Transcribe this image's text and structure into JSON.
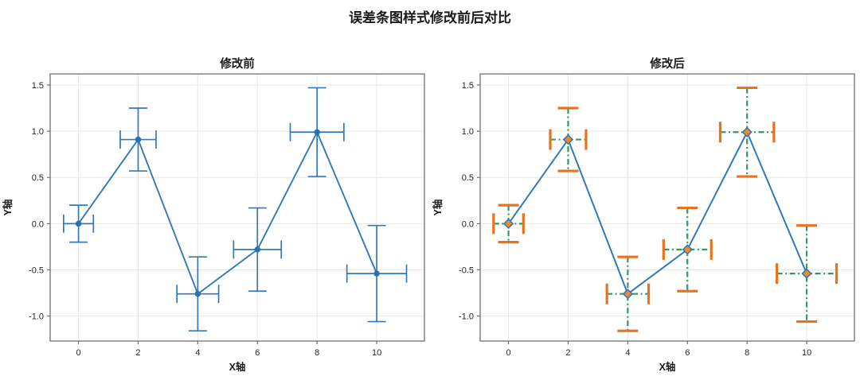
{
  "figure_title": "误差条图样式修改前后对比",
  "chart_data": [
    {
      "type": "line",
      "title": "修改前",
      "xlabel": "X轴",
      "ylabel": "Y轴",
      "x": [
        0,
        2,
        4,
        6,
        8,
        10
      ],
      "y": [
        0.0,
        0.91,
        -0.76,
        -0.28,
        0.99,
        -0.54
      ],
      "xerr": [
        0.5,
        0.6,
        0.7,
        0.8,
        0.9,
        1.0
      ],
      "yerr": [
        0.2,
        0.34,
        0.4,
        0.45,
        0.48,
        0.52
      ],
      "xticks": [
        0,
        2,
        4,
        6,
        8,
        10
      ],
      "xtick_labels": [
        "0",
        "2",
        "4",
        "6",
        "8",
        "10"
      ],
      "yticks": [
        1.5,
        1.0,
        0.5,
        0.0,
        -0.5,
        -1.0
      ],
      "ytick_labels": [
        "1.5",
        "1.0",
        "0.5",
        "0.0",
        "-0.5",
        "-1.0"
      ],
      "xlim": [
        -0.95,
        11.6
      ],
      "ylim": [
        -1.27,
        1.62
      ],
      "grid": true,
      "legend": "none",
      "style": {
        "line_color": "#3279b8",
        "line_width": 1.9,
        "marker": "circle",
        "marker_size": 7.5,
        "marker_fill": "#2a72ae",
        "marker_edge": "none",
        "marker_edge_width": 0,
        "err_color": "#3279b8",
        "err_width": 1.7,
        "err_dash": "",
        "cap_color": "#3279b8",
        "cap_len": 23,
        "cap_thick": 1.7,
        "grid_color": "#e8e8e8",
        "spine_color": "#6f6f6f"
      }
    },
    {
      "type": "line",
      "title": "修改后",
      "xlabel": "X轴",
      "ylabel": "Y轴",
      "x": [
        0,
        2,
        4,
        6,
        8,
        10
      ],
      "y": [
        0.0,
        0.91,
        -0.76,
        -0.28,
        0.99,
        -0.54
      ],
      "xerr": [
        0.5,
        0.6,
        0.7,
        0.8,
        0.9,
        1.0
      ],
      "yerr": [
        0.2,
        0.34,
        0.4,
        0.45,
        0.48,
        0.52
      ],
      "xticks": [
        0,
        2,
        4,
        6,
        8,
        10
      ],
      "xtick_labels": [
        "0",
        "2",
        "4",
        "6",
        "8",
        "10"
      ],
      "yticks": [
        1.5,
        1.0,
        0.5,
        0.0,
        -0.5,
        -1.0
      ],
      "ytick_labels": [
        "1.5",
        "1.0",
        "0.5",
        "0.0",
        "-0.5",
        "-1.0"
      ],
      "xlim": [
        -0.95,
        11.6
      ],
      "ylim": [
        -1.27,
        1.62
      ],
      "grid": true,
      "legend": "none",
      "style": {
        "line_color": "#3279b8",
        "line_width": 2.0,
        "marker": "diamond",
        "marker_size": 11,
        "marker_fill": "#f9891f",
        "marker_edge": "#3279b8",
        "marker_edge_width": 1.6,
        "err_color": "#2e9d63",
        "err_width": 2.2,
        "err_dash": "7 3.5 2 3.5",
        "cap_color": "#e7731c",
        "cap_len": 26,
        "cap_thick": 3.2,
        "grid_color": "#e8e8e8",
        "spine_color": "#6f6f6f"
      }
    }
  ]
}
